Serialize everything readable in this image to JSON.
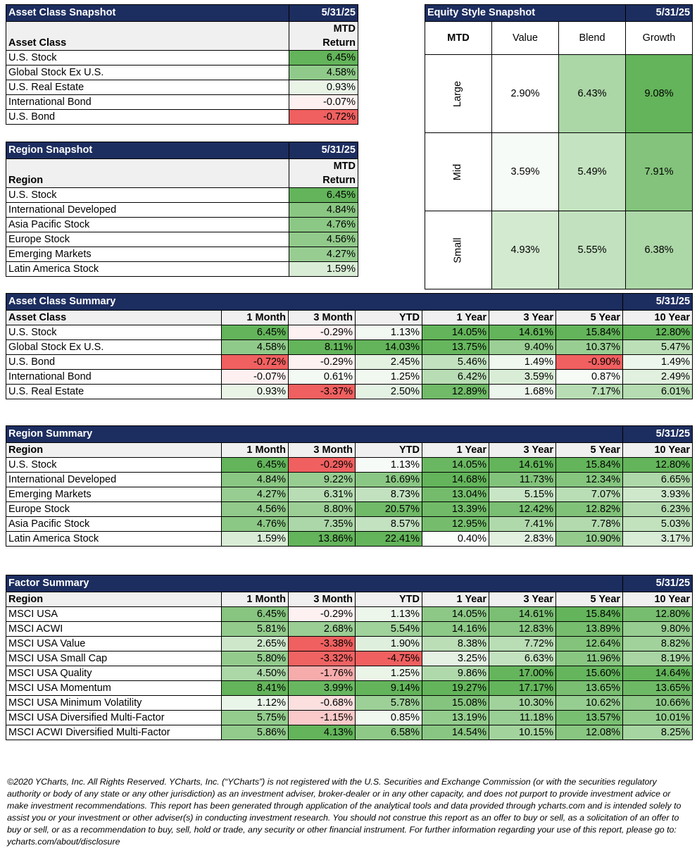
{
  "colors": {
    "header_bg": "#1c2d5f",
    "header_text": "#ffffff",
    "positive_max": "#63b45a",
    "negative_max": "#f06060",
    "neutral": "#ffffff"
  },
  "asset_snapshot": {
    "title": "Asset Class Snapshot",
    "date": "5/31/25",
    "col_label": "Asset Class",
    "col_mtd_line1": "MTD",
    "col_mtd_line2": "Return",
    "rows": [
      {
        "name": "U.S. Stock",
        "val": "6.45%"
      },
      {
        "name": "Global Stock Ex U.S.",
        "val": "4.58%"
      },
      {
        "name": "U.S. Real Estate",
        "val": "0.93%"
      },
      {
        "name": "International Bond",
        "val": "-0.07%"
      },
      {
        "name": "U.S. Bond",
        "val": "-0.72%"
      }
    ]
  },
  "region_snapshot": {
    "title": "Region Snapshot",
    "date": "5/31/25",
    "col_label": "Region",
    "col_mtd_line1": "MTD",
    "col_mtd_line2": "Return",
    "rows": [
      {
        "name": "U.S. Stock",
        "val": "6.45%"
      },
      {
        "name": "International Developed",
        "val": "4.84%"
      },
      {
        "name": "Asia Pacific Stock",
        "val": "4.76%"
      },
      {
        "name": "Europe Stock",
        "val": "4.56%"
      },
      {
        "name": "Emerging Markets",
        "val": "4.27%"
      },
      {
        "name": "Latin America Stock",
        "val": "1.59%"
      }
    ]
  },
  "equity_style": {
    "title": "Equity Style Snapshot",
    "date": "5/31/25",
    "corner": "MTD",
    "cols": [
      "Value",
      "Blend",
      "Growth"
    ],
    "rows": [
      {
        "name": "Large",
        "vals": [
          "2.90%",
          "6.43%",
          "9.08%"
        ]
      },
      {
        "name": "Mid",
        "vals": [
          "3.59%",
          "5.49%",
          "7.91%"
        ]
      },
      {
        "name": "Small",
        "vals": [
          "4.93%",
          "5.55%",
          "6.38%"
        ]
      }
    ]
  },
  "summaries": [
    {
      "title": "Asset Class Summary",
      "date": "5/31/25",
      "label": "Asset Class",
      "cols": [
        "1 Month",
        "3 Month",
        "YTD",
        "1 Year",
        "3 Year",
        "5 Year",
        "10 Year"
      ],
      "rows": [
        {
          "name": "U.S. Stock",
          "vals": [
            "6.45%",
            "-0.29%",
            "1.13%",
            "14.05%",
            "14.61%",
            "15.84%",
            "12.80%"
          ]
        },
        {
          "name": "Global Stock Ex U.S.",
          "vals": [
            "4.58%",
            "8.11%",
            "14.03%",
            "13.75%",
            "9.40%",
            "10.37%",
            "5.47%"
          ]
        },
        {
          "name": "U.S. Bond",
          "vals": [
            "-0.72%",
            "-0.29%",
            "2.45%",
            "5.46%",
            "1.49%",
            "-0.90%",
            "1.49%"
          ]
        },
        {
          "name": "International Bond",
          "vals": [
            "-0.07%",
            "0.61%",
            "1.25%",
            "6.42%",
            "3.59%",
            "0.87%",
            "2.49%"
          ]
        },
        {
          "name": "U.S. Real Estate",
          "vals": [
            "0.93%",
            "-3.37%",
            "2.50%",
            "12.89%",
            "1.68%",
            "7.17%",
            "6.01%"
          ]
        }
      ]
    },
    {
      "title": "Region Summary",
      "date": "5/31/25",
      "label": "Region",
      "cols": [
        "1 Month",
        "3 Month",
        "YTD",
        "1 Year",
        "3 Year",
        "5 Year",
        "10 Year"
      ],
      "rows": [
        {
          "name": "U.S. Stock",
          "vals": [
            "6.45%",
            "-0.29%",
            "1.13%",
            "14.05%",
            "14.61%",
            "15.84%",
            "12.80%"
          ]
        },
        {
          "name": "International Developed",
          "vals": [
            "4.84%",
            "9.22%",
            "16.69%",
            "14.68%",
            "11.73%",
            "12.34%",
            "6.65%"
          ]
        },
        {
          "name": "Emerging Markets",
          "vals": [
            "4.27%",
            "6.31%",
            "8.73%",
            "13.04%",
            "5.15%",
            "7.07%",
            "3.93%"
          ]
        },
        {
          "name": "Europe Stock",
          "vals": [
            "4.56%",
            "8.80%",
            "20.57%",
            "13.39%",
            "12.42%",
            "12.82%",
            "6.23%"
          ]
        },
        {
          "name": "Asia Pacific Stock",
          "vals": [
            "4.76%",
            "7.35%",
            "8.57%",
            "12.95%",
            "7.41%",
            "7.78%",
            "5.03%"
          ]
        },
        {
          "name": "Latin America Stock",
          "vals": [
            "1.59%",
            "13.86%",
            "22.41%",
            "0.40%",
            "2.83%",
            "10.90%",
            "3.17%"
          ]
        }
      ]
    },
    {
      "title": "Factor Summary",
      "date": "5/31/25",
      "label": "Region",
      "cols": [
        "1 Month",
        "3 Month",
        "YTD",
        "1 Year",
        "3 Year",
        "5 Year",
        "10 Year"
      ],
      "rows": [
        {
          "name": "MSCI USA",
          "vals": [
            "6.45%",
            "-0.29%",
            "1.13%",
            "14.05%",
            "14.61%",
            "15.84%",
            "12.80%"
          ]
        },
        {
          "name": "MSCI ACWI",
          "vals": [
            "5.81%",
            "2.68%",
            "5.54%",
            "14.16%",
            "12.83%",
            "13.89%",
            "9.80%"
          ]
        },
        {
          "name": "MSCI USA Value",
          "vals": [
            "2.65%",
            "-3.38%",
            "1.90%",
            "8.38%",
            "7.72%",
            "12.64%",
            "8.82%"
          ]
        },
        {
          "name": "MSCI USA Small Cap",
          "vals": [
            "5.80%",
            "-3.32%",
            "-4.75%",
            "3.25%",
            "6.63%",
            "11.96%",
            "8.19%"
          ]
        },
        {
          "name": "MSCI USA Quality",
          "vals": [
            "4.50%",
            "-1.76%",
            "1.25%",
            "9.86%",
            "17.00%",
            "15.60%",
            "14.64%"
          ]
        },
        {
          "name": "MSCI USA Momentum",
          "vals": [
            "8.41%",
            "3.99%",
            "9.14%",
            "19.27%",
            "17.17%",
            "13.65%",
            "13.65%"
          ]
        },
        {
          "name": "MSCI USA Minimum Volatility",
          "vals": [
            "1.12%",
            "-0.68%",
            "5.78%",
            "15.08%",
            "10.30%",
            "10.62%",
            "10.66%"
          ]
        },
        {
          "name": "MSCI USA Diversified Multi-Factor",
          "vals": [
            "5.75%",
            "-1.15%",
            "0.85%",
            "13.19%",
            "11.18%",
            "13.57%",
            "10.01%"
          ]
        },
        {
          "name": "MSCI ACWI Diversified Multi-Factor",
          "vals": [
            "5.86%",
            "4.13%",
            "6.58%",
            "14.54%",
            "10.15%",
            "12.08%",
            "8.25%"
          ]
        }
      ]
    }
  ],
  "footer": "©2020 YCharts, Inc. All Rights Reserved. YCharts, Inc. (“YCharts”) is not registered with the U.S. Securities and Exchange Commission (or with the securities regulatory authority or body of any state or any other jurisdiction) as an investment adviser, broker-dealer or in any other capacity, and does not purport to provide investment advice or make investment recommendations. This report has been generated through application of the analytical tools and data provided through ycharts.com and is intended solely to assist you or your investment or other adviser(s) in conducting investment research. You should not construe this report as an offer to buy or sell, as a solicitation of an offer to buy or sell, or as a recommendation to buy, sell, hold or trade, any security or other financial instrument. For further information regarding your use of this report, please go to: ycharts.com/about/disclosure"
}
